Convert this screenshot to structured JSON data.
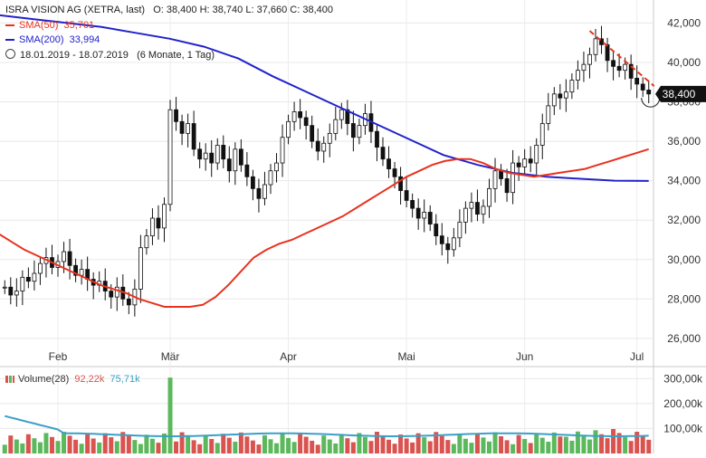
{
  "header": {
    "title": "ISRA VISION AG (XETRA, last)",
    "ohlc": "O: 38,400   H: 38,740   L: 37,660   C: 38,400",
    "sma50_label": "SMA(50)",
    "sma50_value": "35,701",
    "sma200_label": "SMA(200)",
    "sma200_value": "33,994",
    "period": "18.01.2019 - 18.07.2019",
    "period_note": "(6 Monate, 1 Tag)"
  },
  "colors": {
    "sma50": "#e8321e",
    "sma200": "#2222cc",
    "trendline": "#e8321e",
    "up_volume": "#5cb85c",
    "down_volume": "#d9534f",
    "volume_avg": "#3aa0c8",
    "last_price_bg": "#111111"
  },
  "volume_legend": {
    "label": "Volume(28)",
    "value1": "92,22k",
    "value2": "75,71k"
  },
  "chart_data": {
    "type": "candlestick",
    "title": "ISRA VISION AG (XETRA, last)",
    "last_price": "38,400",
    "y_ticks": [
      "26,000",
      "28,000",
      "30,000",
      "32,000",
      "34,000",
      "36,000",
      "38,000",
      "40,000",
      "42,000"
    ],
    "y_values": [
      26,
      28,
      30,
      32,
      34,
      36,
      38,
      40,
      42
    ],
    "ylim": [
      24.8,
      42.8
    ],
    "x_labels": [
      "Feb",
      "Mär",
      "Apr",
      "Mai",
      "Jun",
      "Jul"
    ],
    "x_label_index": [
      9,
      28,
      48,
      68,
      88,
      107
    ],
    "closes": [
      28.6,
      28.2,
      28.4,
      29.1,
      28.9,
      29.3,
      29.8,
      30.1,
      29.6,
      29.9,
      30.4,
      29.7,
      29.2,
      29.5,
      29.0,
      28.7,
      28.9,
      28.4,
      28.1,
      28.6,
      28.0,
      27.7,
      28.5,
      30.6,
      31.2,
      32.1,
      31.6,
      32.8,
      37.6,
      37.0,
      36.4,
      36.9,
      35.6,
      35.1,
      35.4,
      34.9,
      35.8,
      35.1,
      34.5,
      35.6,
      34.8,
      34.2,
      33.6,
      33.1,
      33.8,
      34.5,
      34.9,
      36.2,
      37.0,
      37.5,
      37.2,
      36.8,
      36.0,
      35.5,
      35.9,
      36.4,
      37.1,
      37.6,
      36.9,
      36.2,
      36.8,
      37.4,
      36.5,
      35.7,
      35.1,
      34.6,
      34.2,
      33.5,
      33.0,
      32.6,
      32.1,
      32.4,
      31.8,
      31.2,
      30.8,
      30.5,
      31.1,
      31.9,
      32.6,
      32.9,
      32.3,
      32.7,
      33.6,
      34.5,
      34.1,
      33.4,
      34.9,
      34.7,
      35.1,
      34.9,
      35.8,
      36.9,
      37.8,
      38.4,
      38.2,
      38.5,
      39.1,
      39.6,
      39.9,
      40.4,
      41.2,
      40.9,
      40.1,
      39.8,
      39.6,
      39.9,
      39.2,
      38.9,
      38.6,
      38.4
    ],
    "series": [
      {
        "name": "SMA(50)",
        "values": [
          31.3,
          30.9,
          30.5,
          30.2,
          29.9,
          29.6,
          29.3,
          29.0,
          28.7,
          28.5,
          28.3,
          28.0,
          27.8,
          27.6,
          27.6,
          27.6,
          27.7,
          28.1,
          28.7,
          29.4,
          30.1,
          30.5,
          30.8,
          31.0,
          31.3,
          31.6,
          31.9,
          32.2,
          32.6,
          33.0,
          33.4,
          33.8,
          34.2,
          34.5,
          34.8,
          35.0,
          35.1,
          35.1,
          34.9,
          34.6,
          34.4,
          34.3,
          34.2,
          34.3,
          34.4,
          34.5,
          34.6,
          34.8,
          35.0,
          35.2,
          35.4,
          35.6
        ]
      },
      {
        "name": "SMA(200)",
        "values": [
          42.4,
          42.2,
          42.0,
          41.8,
          41.5,
          41.2,
          40.8,
          40.2,
          39.3,
          38.5,
          37.7,
          36.9,
          36.1,
          35.3,
          34.8,
          34.4,
          34.2,
          34.1,
          34.0,
          33.99
        ]
      }
    ]
  }
}
